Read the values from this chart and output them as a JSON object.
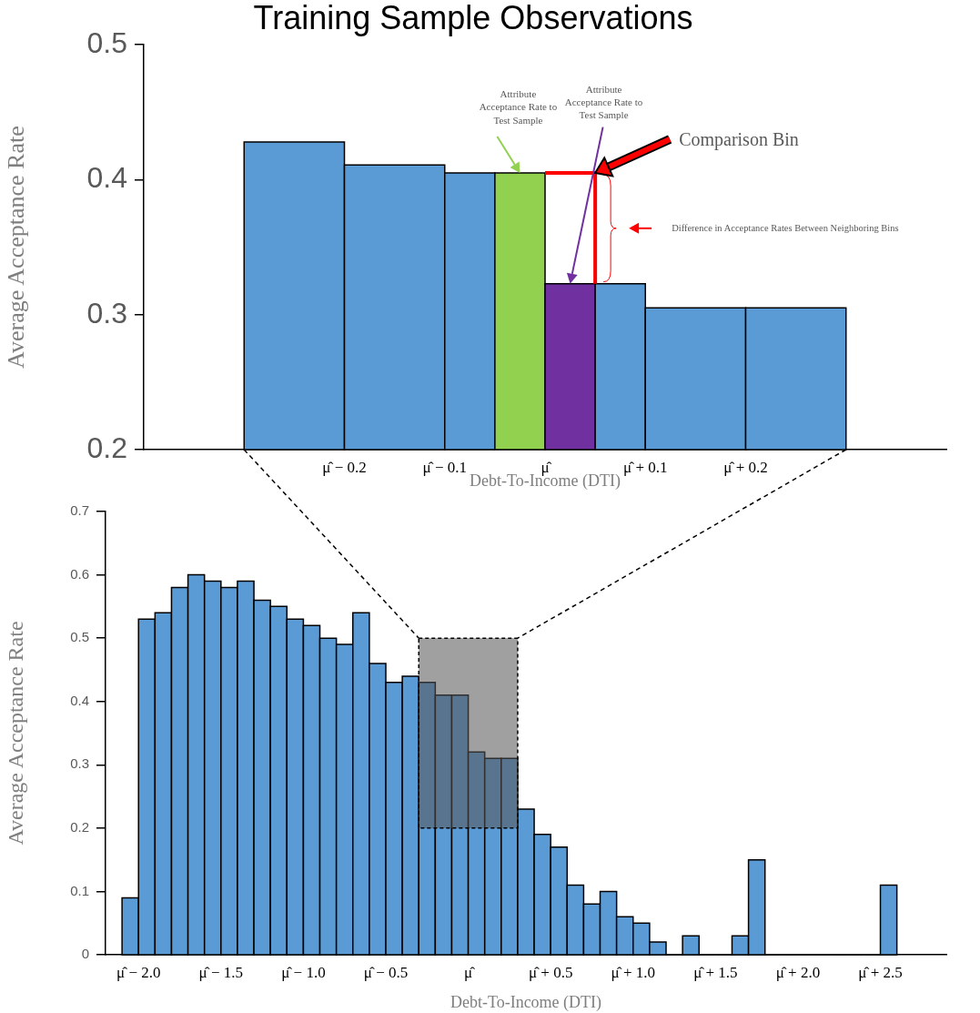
{
  "chart_data": [
    {
      "type": "histogram",
      "title": "Training Sample Observations",
      "xlabel": "Debt-To-Income (DTI)",
      "ylabel": "Average Acceptance Rate",
      "bins": [
        -0.3,
        -0.2,
        -0.1,
        -0.05,
        0,
        0.05,
        0.1,
        0.2,
        0.3
      ],
      "values": [
        0.428,
        0.411,
        0.405,
        0.405,
        0.323,
        0.323,
        0.305,
        0.305
      ],
      "colors": [
        "#5b9bd5",
        "#5b9bd5",
        "#5b9bd5",
        "#92d050",
        "#7030a0",
        "#5b9bd5",
        "#5b9bd5",
        "#5b9bd5"
      ],
      "xlim": [
        -0.4,
        0.4
      ],
      "xticks": [
        {
          "value": -0.2,
          "label": "μ̂ − 0.2"
        },
        {
          "value": -0.1,
          "label": "μ̂ − 0.1"
        },
        {
          "value": 0,
          "label": "μ̂"
        },
        {
          "value": 0.1,
          "label": "μ̂ + 0.1"
        },
        {
          "value": 0.2,
          "label": "μ̂ + 0.2"
        }
      ],
      "ylim": [
        0.2,
        0.5
      ],
      "yticks": [
        0.2,
        0.3,
        0.4,
        0.5
      ],
      "annotations": [
        "Attribute Acceptance Rate to Test Sample",
        "Attribute Acceptance Rate to Test Sample",
        "Comparison Bin",
        "Difference in Acceptance Rates Between Neighboring Bins"
      ]
    },
    {
      "type": "histogram",
      "xlabel": "Debt-To-Income (DTI)",
      "ylabel": "Average Acceptance Rate",
      "bins": [
        -2.1,
        -2,
        -1.9,
        -1.8,
        -1.7,
        -1.6,
        -1.5,
        -1.4,
        -1.3,
        -1.2,
        -1.1,
        -1,
        -0.9,
        -0.8,
        -0.7,
        -0.6,
        -0.5,
        -0.4,
        -0.3,
        -0.2,
        -0.1,
        0,
        0.1,
        0.2,
        0.3,
        0.4,
        0.5,
        0.6,
        0.7,
        0.8,
        0.9,
        1,
        1.1,
        1.2,
        1.3,
        1.4,
        1.5,
        1.6,
        1.7,
        1.8,
        1.9,
        2,
        2.1,
        2.2,
        2.3,
        2.4,
        2.5,
        2.6
      ],
      "values": [
        0.09,
        0.53,
        0.54,
        0.58,
        0.6,
        0.59,
        0.58,
        0.59,
        0.56,
        0.55,
        0.53,
        0.52,
        0.5,
        0.49,
        0.54,
        0.46,
        0.43,
        0.44,
        0.43,
        0.41,
        0.41,
        0.32,
        0.31,
        0.31,
        0.23,
        0.19,
        0.17,
        0.11,
        0.08,
        0.1,
        0.06,
        0.05,
        0.02,
        0,
        0.03,
        0,
        0,
        0.03,
        0.15,
        0,
        0,
        0,
        0,
        0,
        0,
        0,
        0.11
      ],
      "color": "#5b9bd5",
      "xlim": [
        -2.2,
        2.9
      ],
      "xticks": [
        {
          "value": -2,
          "label": "μ̂ − 2.0"
        },
        {
          "value": -1.5,
          "label": "μ̂ − 1.5"
        },
        {
          "value": -1,
          "label": "μ̂ − 1.0"
        },
        {
          "value": -0.5,
          "label": "μ̂ − 0.5"
        },
        {
          "value": 0,
          "label": "μ̂"
        },
        {
          "value": 0.5,
          "label": "μ̂ + 0.5"
        },
        {
          "value": 1,
          "label": "μ̂ + 1.0"
        },
        {
          "value": 1.5,
          "label": "μ̂ + 1.5"
        },
        {
          "value": 2,
          "label": "μ̂ + 2.0"
        },
        {
          "value": 2.5,
          "label": "μ̂ + 2.5"
        }
      ],
      "ylim": [
        0,
        0.7
      ],
      "yticks": [
        0,
        0.1,
        0.2,
        0.3,
        0.4,
        0.5,
        0.6,
        0.7
      ]
    }
  ]
}
